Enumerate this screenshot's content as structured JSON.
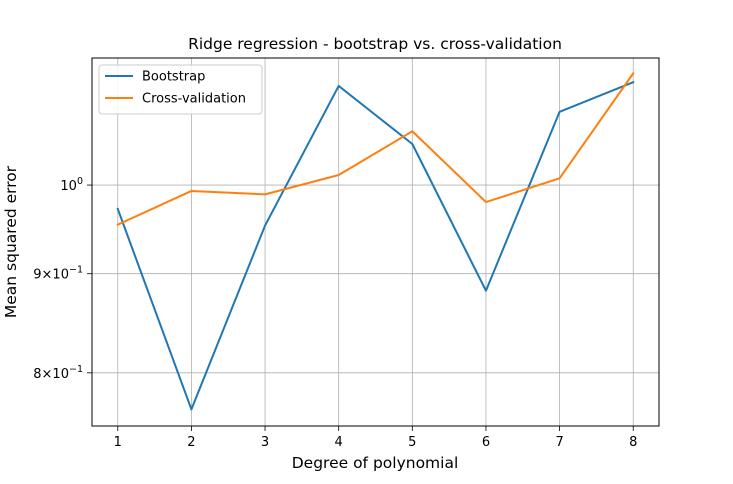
{
  "chart_data": {
    "type": "line",
    "title": "Ridge regression - bootstrap vs. cross-validation",
    "xlabel": "Degree of polynomial",
    "ylabel": "Mean squared error",
    "y_scale": "log",
    "x_ticks": [
      1,
      2,
      3,
      4,
      5,
      6,
      7,
      8
    ],
    "x_tick_labels": [
      "1",
      "2",
      "3",
      "4",
      "5",
      "6",
      "7",
      "8"
    ],
    "y_ticks": [
      {
        "value": 1.0,
        "base": "10",
        "exp": "0",
        "prefix": ""
      },
      {
        "value": 0.9,
        "base": "10",
        "exp": "−1",
        "prefix": "9×"
      },
      {
        "value": 0.8,
        "base": "10",
        "exp": "−1",
        "prefix": "8×"
      }
    ],
    "xlim": [
      0.65,
      8.35
    ],
    "ylim": [
      0.751,
      1.163
    ],
    "grid": true,
    "legend_position": "upper-left",
    "x": [
      1,
      2,
      3,
      4,
      5,
      6,
      7,
      8
    ],
    "series": [
      {
        "name": "Bootstrap",
        "color": "#1f77b4",
        "values": [
          0.972,
          0.766,
          0.953,
          1.125,
          1.05,
          0.882,
          1.091,
          1.13
        ]
      },
      {
        "name": "Cross-validation",
        "color": "#ff7f0e",
        "values": [
          0.954,
          0.993,
          0.989,
          1.012,
          1.066,
          0.98,
          1.008,
          1.142
        ]
      }
    ]
  }
}
